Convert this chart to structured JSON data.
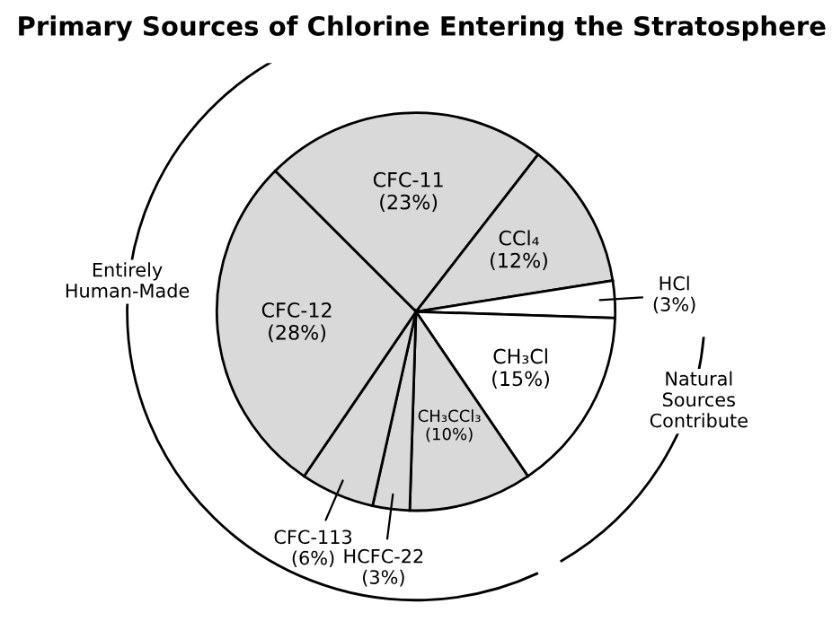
{
  "chart_data": {
    "type": "pie",
    "title": "Primary Sources of Chlorine Entering the Stratosphere",
    "categories": [
      "CFC-11",
      "CCl₄",
      "HCl",
      "CH₃Cl",
      "CH₃CCl₃",
      "HCFC-22",
      "CFC-113",
      "CFC-12"
    ],
    "values": [
      23,
      12,
      3,
      15,
      10,
      3,
      6,
      28
    ],
    "value_labels": [
      "(23%)",
      "(12%)",
      "(3%)",
      "(15%)",
      "(10%)",
      "(3%)",
      "(6%)",
      "(28%)"
    ],
    "colors": [
      "#d9d9d9",
      "#d9d9d9",
      "#ffffff",
      "#ffffff",
      "#d9d9d9",
      "#d9d9d9",
      "#d9d9d9",
      "#d9d9d9"
    ],
    "annotations": [
      "Entirely Human-Made",
      "Natural Sources Contribute"
    ]
  }
}
